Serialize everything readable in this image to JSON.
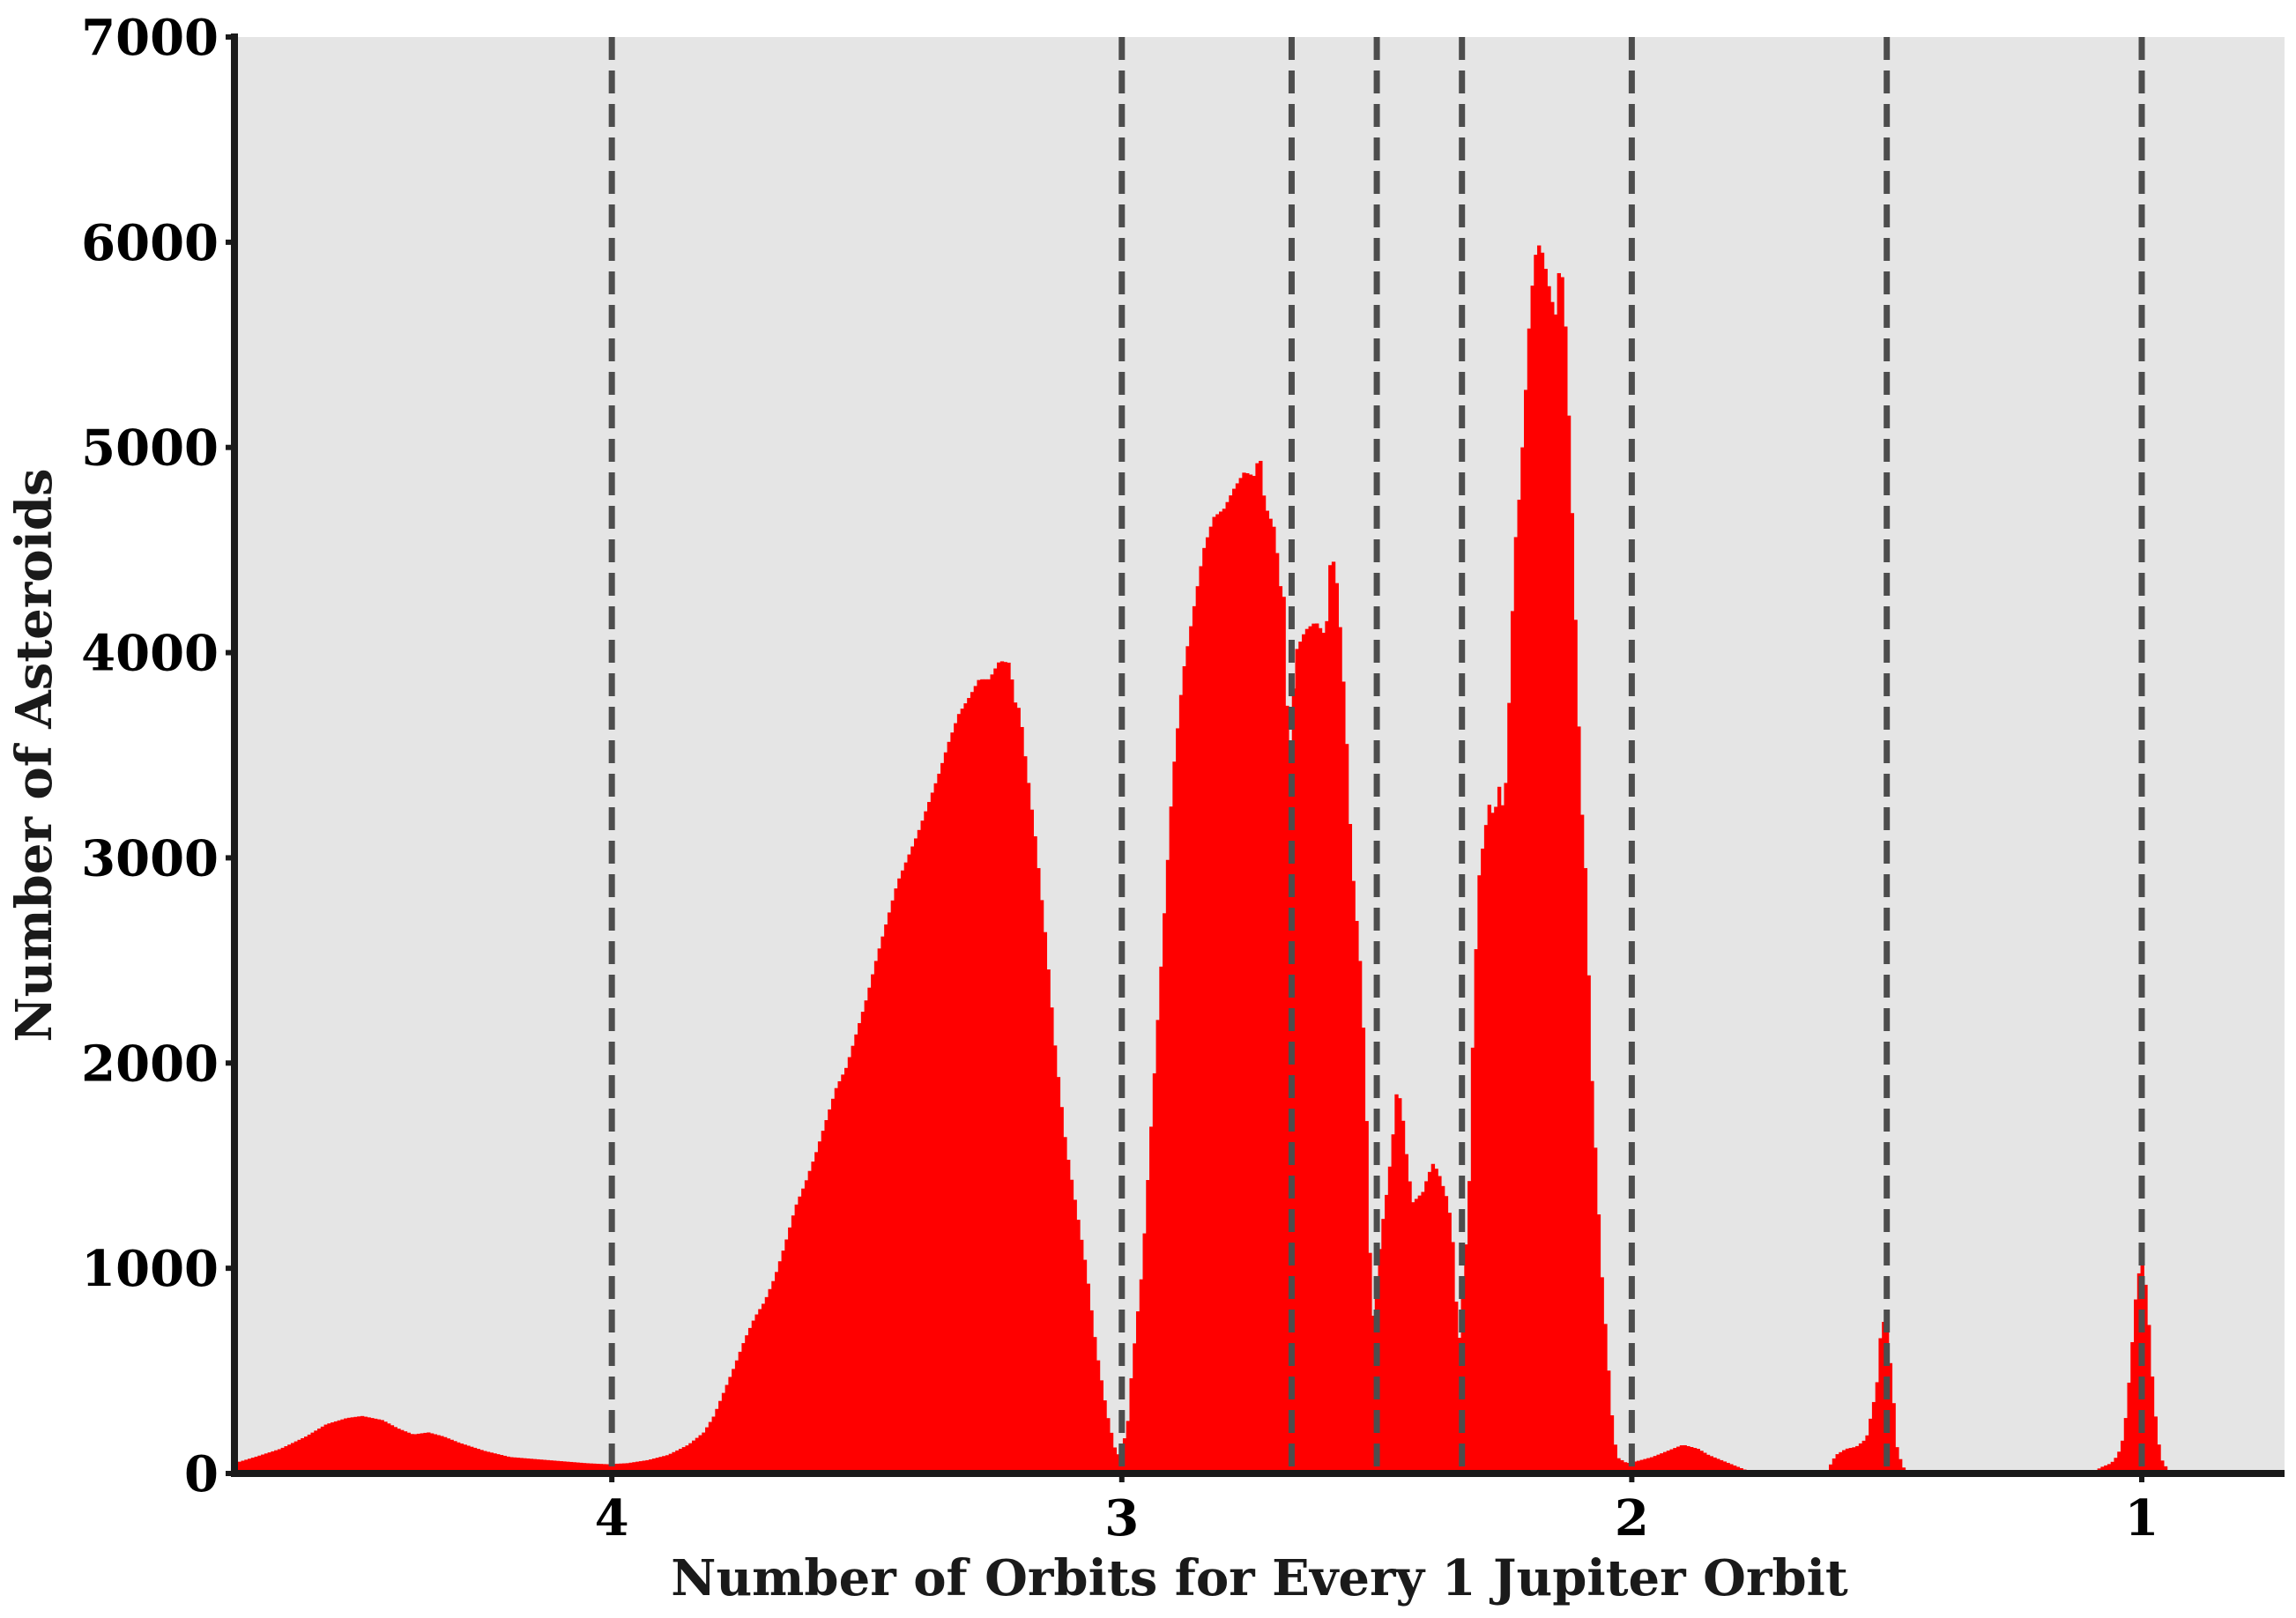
{
  "chart_data": {
    "type": "bar",
    "xlabel": "Number of Orbits for Every 1 Jupiter Orbit",
    "ylabel": "Number of Asteroids",
    "x_axis_reversed": true,
    "xlim": [
      4.74,
      0.72
    ],
    "ylim": [
      0,
      7000
    ],
    "x_ticks": [
      4,
      3,
      2,
      1
    ],
    "x_tick_labels": [
      "4",
      "3",
      "2",
      "1"
    ],
    "y_ticks": [
      0,
      1000,
      2000,
      3000,
      4000,
      5000,
      6000,
      7000
    ],
    "y_tick_labels": [
      "0",
      "1000",
      "2000",
      "3000",
      "4000",
      "5000",
      "6000",
      "7000"
    ],
    "grid": false,
    "legend": "none",
    "resonance_lines": [
      4,
      3,
      2.667,
      2.5,
      2.333,
      2,
      1.5,
      1
    ],
    "colors": {
      "bars": "#ff0000",
      "plot_background": "#e5e5e5",
      "resonance_lines": "#4d4d4d",
      "axes": "#1a1a1a"
    },
    "profile": [
      [
        4.74,
        50
      ],
      [
        4.7,
        80
      ],
      [
        4.65,
        120
      ],
      [
        4.6,
        180
      ],
      [
        4.56,
        240
      ],
      [
        4.52,
        270
      ],
      [
        4.49,
        280
      ],
      [
        4.45,
        260
      ],
      [
        4.42,
        220
      ],
      [
        4.39,
        190
      ],
      [
        4.36,
        200
      ],
      [
        4.33,
        180
      ],
      [
        4.3,
        150
      ],
      [
        4.25,
        110
      ],
      [
        4.2,
        80
      ],
      [
        4.15,
        70
      ],
      [
        4.1,
        60
      ],
      [
        4.05,
        50
      ],
      [
        4.01,
        45
      ],
      [
        3.97,
        50
      ],
      [
        3.93,
        65
      ],
      [
        3.89,
        90
      ],
      [
        3.85,
        140
      ],
      [
        3.82,
        200
      ],
      [
        3.8,
        280
      ],
      [
        3.78,
        400
      ],
      [
        3.76,
        520
      ],
      [
        3.74,
        650
      ],
      [
        3.72,
        760
      ],
      [
        3.7,
        840
      ],
      [
        3.68,
        960
      ],
      [
        3.66,
        1120
      ],
      [
        3.64,
        1300
      ],
      [
        3.62,
        1420
      ],
      [
        3.6,
        1560
      ],
      [
        3.58,
        1720
      ],
      [
        3.56,
        1880
      ],
      [
        3.54,
        1980
      ],
      [
        3.52,
        2150
      ],
      [
        3.5,
        2320
      ],
      [
        3.48,
        2520
      ],
      [
        3.46,
        2700
      ],
      [
        3.44,
        2880
      ],
      [
        3.42,
        3000
      ],
      [
        3.4,
        3120
      ],
      [
        3.38,
        3260
      ],
      [
        3.36,
        3400
      ],
      [
        3.34,
        3560
      ],
      [
        3.32,
        3700
      ],
      [
        3.3,
        3780
      ],
      [
        3.28,
        3870
      ],
      [
        3.26,
        3870
      ],
      [
        3.24,
        3960
      ],
      [
        3.22,
        3950
      ],
      [
        3.21,
        3760
      ],
      [
        3.2,
        3720
      ],
      [
        3.19,
        3500
      ],
      [
        3.17,
        3100
      ],
      [
        3.15,
        2620
      ],
      [
        3.13,
        2050
      ],
      [
        3.11,
        1600
      ],
      [
        3.09,
        1300
      ],
      [
        3.07,
        1000
      ],
      [
        3.05,
        600
      ],
      [
        3.03,
        300
      ],
      [
        3.01,
        80
      ],
      [
        2.99,
        200
      ],
      [
        2.98,
        520
      ],
      [
        2.96,
        1000
      ],
      [
        2.94,
        1800
      ],
      [
        2.92,
        2600
      ],
      [
        2.9,
        3400
      ],
      [
        2.88,
        3900
      ],
      [
        2.86,
        4200
      ],
      [
        2.84,
        4500
      ],
      [
        2.82,
        4660
      ],
      [
        2.8,
        4700
      ],
      [
        2.78,
        4800
      ],
      [
        2.76,
        4880
      ],
      [
        2.74,
        4860
      ],
      [
        2.73,
        4980
      ],
      [
        2.72,
        4720
      ],
      [
        2.7,
        4600
      ],
      [
        2.69,
        4330
      ],
      [
        2.68,
        4250
      ],
      [
        2.673,
        3300
      ],
      [
        2.66,
        4000
      ],
      [
        2.64,
        4110
      ],
      [
        2.62,
        4150
      ],
      [
        2.6,
        4080
      ],
      [
        2.59,
        4500
      ],
      [
        2.58,
        4380
      ],
      [
        2.57,
        4050
      ],
      [
        2.56,
        3600
      ],
      [
        2.55,
        3000
      ],
      [
        2.53,
        2400
      ],
      [
        2.52,
        1700
      ],
      [
        2.51,
        700
      ],
      [
        2.49,
        1200
      ],
      [
        2.48,
        1380
      ],
      [
        2.47,
        1600
      ],
      [
        2.46,
        1900
      ],
      [
        2.45,
        1750
      ],
      [
        2.44,
        1500
      ],
      [
        2.43,
        1320
      ],
      [
        2.41,
        1370
      ],
      [
        2.4,
        1450
      ],
      [
        2.39,
        1510
      ],
      [
        2.38,
        1470
      ],
      [
        2.36,
        1320
      ],
      [
        2.35,
        1100
      ],
      [
        2.34,
        600
      ],
      [
        2.32,
        1300
      ],
      [
        2.31,
        2300
      ],
      [
        2.3,
        2900
      ],
      [
        2.29,
        3100
      ],
      [
        2.28,
        3260
      ],
      [
        2.27,
        3200
      ],
      [
        2.26,
        3350
      ],
      [
        2.25,
        3200
      ],
      [
        2.24,
        3800
      ],
      [
        2.23,
        4500
      ],
      [
        2.22,
        4780
      ],
      [
        2.21,
        5200
      ],
      [
        2.2,
        5660
      ],
      [
        2.19,
        5930
      ],
      [
        2.18,
        6000
      ],
      [
        2.17,
        5880
      ],
      [
        2.16,
        5750
      ],
      [
        2.15,
        5640
      ],
      [
        2.14,
        5950
      ],
      [
        2.13,
        5580
      ],
      [
        2.12,
        4900
      ],
      [
        2.11,
        4100
      ],
      [
        2.1,
        3300
      ],
      [
        2.09,
        2900
      ],
      [
        2.08,
        2000
      ],
      [
        2.07,
        1500
      ],
      [
        2.06,
        1000
      ],
      [
        2.05,
        650
      ],
      [
        2.04,
        300
      ],
      [
        2.03,
        80
      ],
      [
        2.01,
        50
      ],
      [
        1.99,
        60
      ],
      [
        1.96,
        80
      ],
      [
        1.93,
        110
      ],
      [
        1.9,
        140
      ],
      [
        1.87,
        120
      ],
      [
        1.85,
        90
      ],
      [
        1.82,
        60
      ],
      [
        1.8,
        40
      ],
      [
        1.78,
        20
      ],
      [
        1.76,
        0
      ],
      [
        1.62,
        0
      ],
      [
        1.6,
        90
      ],
      [
        1.58,
        120
      ],
      [
        1.56,
        130
      ],
      [
        1.54,
        170
      ],
      [
        1.52,
        420
      ],
      [
        1.51,
        750
      ],
      [
        1.5,
        720
      ],
      [
        1.49,
        450
      ],
      [
        1.48,
        120
      ],
      [
        1.47,
        40
      ],
      [
        1.46,
        0
      ],
      [
        1.1,
        0
      ],
      [
        1.08,
        30
      ],
      [
        1.06,
        50
      ],
      [
        1.05,
        80
      ],
      [
        1.04,
        130
      ],
      [
        1.03,
        300
      ],
      [
        1.02,
        600
      ],
      [
        1.01,
        920
      ],
      [
        1.0,
        1050
      ],
      [
        0.99,
        870
      ],
      [
        0.98,
        480
      ],
      [
        0.97,
        180
      ],
      [
        0.96,
        60
      ],
      [
        0.95,
        20
      ],
      [
        0.94,
        0
      ]
    ]
  }
}
